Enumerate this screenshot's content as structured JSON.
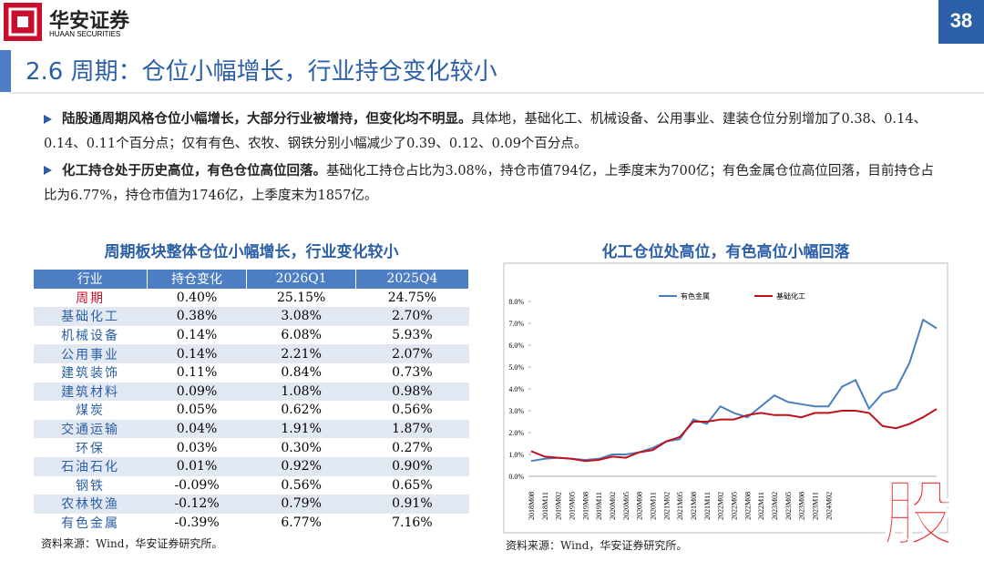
{
  "header": {
    "logo_text": "华安证券",
    "logo_subtext": "HUAAN SECURITIES",
    "page_number": "38",
    "title": "2.6 周期：仓位小幅增长，行业持仓变化较小"
  },
  "bullets": [
    {
      "bold": "陆股通周期风格仓位小幅增长，大部分行业被增持，但变化均不明显。",
      "text": "具体地，基础化工、机械设备、公用事业、建装仓位分别增加了0.38、0.14、0.14、0.11个百分点；仅有有色、农牧、钢铁分别小幅减少了0.39、0.12、0.09个百分点。"
    },
    {
      "bold": "化工持仓处于历史高位，有色仓位高位回落。",
      "text": "基础化工持仓占比为3.08%，持仓市值794亿，上季度末为700亿；有色金属仓位高位回落，目前持仓占比为6.77%，持仓市值为1746亿，上季度末为1857亿。"
    }
  ],
  "table": {
    "title": "周期板块整体仓位小幅增长，行业变化较小",
    "headers": [
      "行业",
      "持仓变化",
      "2026Q1",
      "2025Q4"
    ],
    "rows": [
      [
        "周期",
        "0.40%",
        "25.15%",
        "24.75%"
      ],
      [
        "基础化工",
        "0.38%",
        "3.08%",
        "2.70%"
      ],
      [
        "机械设备",
        "0.14%",
        "6.08%",
        "5.93%"
      ],
      [
        "公用事业",
        "0.14%",
        "2.21%",
        "2.07%"
      ],
      [
        "建筑装饰",
        "0.11%",
        "0.84%",
        "0.73%"
      ],
      [
        "建筑材料",
        "0.09%",
        "1.08%",
        "0.98%"
      ],
      [
        "煤炭",
        "0.05%",
        "0.62%",
        "0.56%"
      ],
      [
        "交通运输",
        "0.04%",
        "1.91%",
        "1.87%"
      ],
      [
        "环保",
        "0.03%",
        "0.30%",
        "0.27%"
      ],
      [
        "石油石化",
        "0.01%",
        "0.92%",
        "0.90%"
      ],
      [
        "钢铁",
        "-0.09%",
        "0.56%",
        "0.65%"
      ],
      [
        "农林牧渔",
        "-0.12%",
        "0.79%",
        "0.91%"
      ],
      [
        "有色金属",
        "-0.39%",
        "6.77%",
        "7.16%"
      ]
    ],
    "source": "资料来源：Wind，华安证券研究所。"
  },
  "chart_data": {
    "type": "line",
    "title": "化工仓位处高位，有色高位小幅回落",
    "categories": [
      "2018M08",
      "2018M11",
      "2019M02",
      "2019M05",
      "2019M08",
      "2019M11",
      "2020M02",
      "2020M05",
      "2020M08",
      "2020M11",
      "2021M02",
      "2021M05",
      "2021M08",
      "2021M11",
      "2022M02",
      "2022M05",
      "2022M08",
      "2022M11",
      "2023M02",
      "2023M05",
      "2023M08",
      "2023M11",
      "2024M02",
      null,
      null,
      null,
      null,
      null,
      null,
      null,
      null
    ],
    "series": [
      {
        "name": "有色金属",
        "color": "#4a7fbf",
        "values": [
          0.7,
          0.8,
          0.85,
          0.8,
          0.75,
          0.8,
          1.0,
          1.0,
          1.1,
          1.3,
          1.6,
          1.7,
          2.6,
          2.4,
          3.2,
          2.9,
          2.7,
          3.2,
          3.7,
          3.4,
          3.3,
          3.2,
          3.2,
          4.1,
          4.4,
          3.1,
          3.8,
          4.0,
          5.2,
          7.16,
          6.77
        ]
      },
      {
        "name": "基础化工",
        "color": "#c0101c",
        "values": [
          1.15,
          0.9,
          0.85,
          0.8,
          0.7,
          0.75,
          0.9,
          0.85,
          1.1,
          1.2,
          1.6,
          1.8,
          2.5,
          2.5,
          2.6,
          2.6,
          2.8,
          2.9,
          2.8,
          2.8,
          2.7,
          2.9,
          2.9,
          3.0,
          3.0,
          2.9,
          2.3,
          2.2,
          2.4,
          2.7,
          3.08
        ]
      }
    ],
    "ylim": [
      0,
      8
    ],
    "yticks": [
      {
        "value": 0,
        "label": "0.0%"
      },
      {
        "value": 1,
        "label": "1.0%"
      },
      {
        "value": 2,
        "label": "2.0%"
      },
      {
        "value": 3,
        "label": "3.0%"
      },
      {
        "value": 4,
        "label": "4.0%"
      },
      {
        "value": 5,
        "label": "5.0%"
      },
      {
        "value": 6,
        "label": "6.0%"
      },
      {
        "value": 7,
        "label": "7.0%"
      },
      {
        "value": 8,
        "label": "8.0%"
      }
    ],
    "legend": "top",
    "source": "资料来源：Wind，华安证券研究所。"
  },
  "watermark": "股"
}
